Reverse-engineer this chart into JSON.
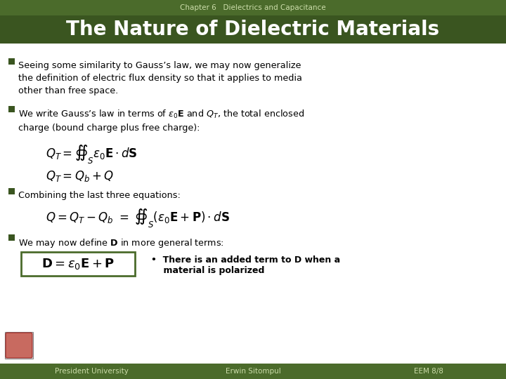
{
  "title": "The Nature of Dielectric Materials",
  "subtitle": "Chapter 6   Dielectrics and Capacitance",
  "bg_color": "#FFFFFF",
  "header_bg": "#4B6B2B",
  "title_bar_bg": "#3A5520",
  "footer_bg": "#4B6B2B",
  "title_color": "#FFFFFF",
  "subtitle_color": "#CCDDAA",
  "footer_color": "#CCDDAA",
  "body_color": "#000000",
  "bullet_color": "#3A5520",
  "footer_left": "President University",
  "footer_mid": "Erwin Sitompul",
  "footer_right": "EEM 8/8",
  "bullet1": "Seeing some similarity to Gauss’s law, we may now generalize\nthe definition of electric flux density so that it applies to media\nother than free space.",
  "bullet2": "We write Gauss’s law in terms of $\\varepsilon_0\\mathbf{E}$ and $Q_T$, the total enclosed\ncharge (bound charge plus free charge):",
  "eq1": "$Q_T = \\oiint_S \\varepsilon_0\\mathbf{E}\\cdot d\\mathbf{S}$",
  "eq2": "$Q_T = Q_b + Q$",
  "bullet3": "Combining the last three equations:",
  "eq3": "$Q = Q_T - Q_b \\ = \\ \\oiint_S (\\varepsilon_0\\mathbf{E} + \\mathbf{P})\\cdot d\\mathbf{S}$",
  "bullet4": "We may now define $\\mathbf{D}$ in more general terms:",
  "eq4": "$\\mathbf{D} = \\varepsilon_0\\mathbf{E} + \\mathbf{P}$",
  "note_line1": "•  There is an added term to D when a",
  "note_line2": "    material is polarized",
  "eq4_box_color": "#4B6B2B"
}
